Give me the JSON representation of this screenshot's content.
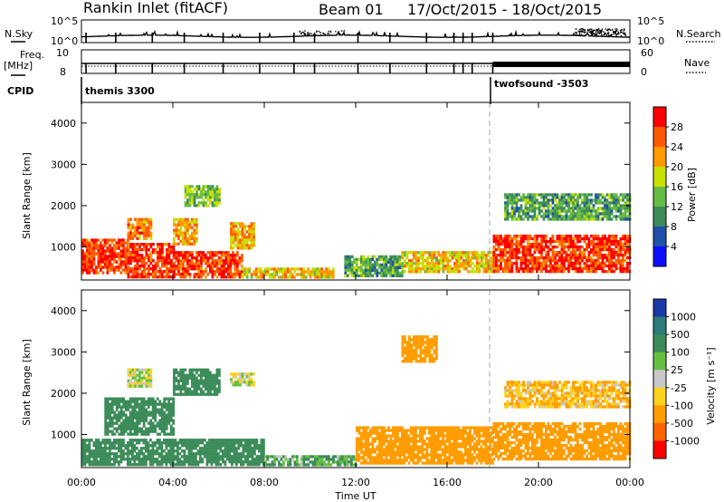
{
  "header": {
    "station": "Rankin Inlet (fitACF)",
    "beam": "Beam 01",
    "dates": "17/Oct/2015 - 18/Oct/2015"
  },
  "top_panels": {
    "nsky_label": "N.Sky",
    "nsearch_label": "N.Search",
    "freq_label": "Freq.",
    "freq_unit": "[MHz]",
    "nave_label": "Nave",
    "cpid_label": "CPID",
    "nsky_ticks": [
      "10^5",
      "10^0"
    ],
    "nsearch_ticks": [
      "10^5",
      "10^0"
    ],
    "freq_ticks": [
      "10",
      "8"
    ],
    "nave_ticks": [
      "60",
      "0"
    ],
    "cpid_modes": [
      {
        "name": "themis 3300",
        "start_hour": 0
      },
      {
        "name": "twofsound -3503",
        "start_hour": 18
      }
    ]
  },
  "x_axis": {
    "label": "Time UT",
    "ticks": [
      "00:00",
      "04:00",
      "08:00",
      "12:00",
      "16:00",
      "20:00",
      "00:00"
    ]
  },
  "y_axis": {
    "label": "Slant Range [km]",
    "ticks": [
      "1000",
      "2000",
      "3000",
      "4000"
    ]
  },
  "colorbars": {
    "power": {
      "label": "Power [dB]",
      "ticks": [
        "28",
        "24",
        "20",
        "16",
        "12",
        "8",
        "4"
      ],
      "colors": [
        "#ff0000",
        "#ff5a00",
        "#ff9a00",
        "#c8e000",
        "#66bb44",
        "#3c8c5a",
        "#2050a8",
        "#0a10ff"
      ]
    },
    "velocity": {
      "label": "Velocity [m s⁻¹]",
      "ticks": [
        "1000",
        "500",
        "100",
        "25",
        "-25",
        "-100",
        "-500",
        "-1000"
      ],
      "colors": [
        "#1a3aa8",
        "#2f7a7a",
        "#3c8c5a",
        "#66c040",
        "#c8c8c8",
        "#ffd21e",
        "#ff9d00",
        "#ff6400",
        "#ff0000"
      ]
    }
  },
  "chart_data": {
    "type": "heatmap",
    "x_range_hours": [
      0,
      24
    ],
    "y_range_km": [
      200,
      4500
    ],
    "dashed_line_hour": 18,
    "power_dB": [
      {
        "hours": [
          0,
          2
        ],
        "range_km": [
          400,
          1200
        ],
        "value": 28
      },
      {
        "hours": [
          2,
          4
        ],
        "range_km": [
          300,
          1100
        ],
        "value": 28
      },
      {
        "hours": [
          4,
          7
        ],
        "range_km": [
          250,
          900
        ],
        "value": 28
      },
      {
        "hours": [
          7,
          11
        ],
        "range_km": [
          250,
          500
        ],
        "value": 20
      },
      {
        "hours": [
          2,
          3
        ],
        "range_km": [
          1200,
          1700
        ],
        "value": 24
      },
      {
        "hours": [
          4,
          5
        ],
        "range_km": [
          1100,
          1700
        ],
        "value": 22
      },
      {
        "hours": [
          6.5,
          7.5
        ],
        "range_km": [
          1000,
          1600
        ],
        "value": 22
      },
      {
        "hours": [
          4.5,
          6
        ],
        "range_km": [
          2000,
          2500
        ],
        "value": 14
      },
      {
        "hours": [
          11.5,
          14
        ],
        "range_km": [
          300,
          800
        ],
        "value": 12
      },
      {
        "hours": [
          14,
          18
        ],
        "range_km": [
          400,
          900
        ],
        "value": 20
      },
      {
        "hours": [
          18,
          24
        ],
        "range_km": [
          400,
          1300
        ],
        "value": 28
      },
      {
        "hours": [
          18.5,
          24
        ],
        "range_km": [
          1700,
          2300
        ],
        "value": 12
      }
    ],
    "velocity_ms": [
      {
        "hours": [
          0,
          8
        ],
        "range_km": [
          300,
          900
        ],
        "value": 300
      },
      {
        "hours": [
          1,
          4
        ],
        "range_km": [
          1000,
          1900
        ],
        "value": 300
      },
      {
        "hours": [
          4,
          6
        ],
        "range_km": [
          2000,
          2600
        ],
        "value": 300
      },
      {
        "hours": [
          2,
          3
        ],
        "range_km": [
          2200,
          2600
        ],
        "value": 0
      },
      {
        "hours": [
          6.5,
          7.5
        ],
        "range_km": [
          2200,
          2500
        ],
        "value": 0
      },
      {
        "hours": [
          8,
          12
        ],
        "range_km": [
          250,
          500
        ],
        "value": 100
      },
      {
        "hours": [
          12,
          18
        ],
        "range_km": [
          300,
          1200
        ],
        "value": -300
      },
      {
        "hours": [
          14,
          15.5
        ],
        "range_km": [
          2800,
          3400
        ],
        "value": -300
      },
      {
        "hours": [
          18,
          24
        ],
        "range_km": [
          400,
          1300
        ],
        "value": -400
      },
      {
        "hours": [
          18.5,
          24
        ],
        "range_km": [
          1700,
          2300
        ],
        "value": -100
      }
    ]
  }
}
